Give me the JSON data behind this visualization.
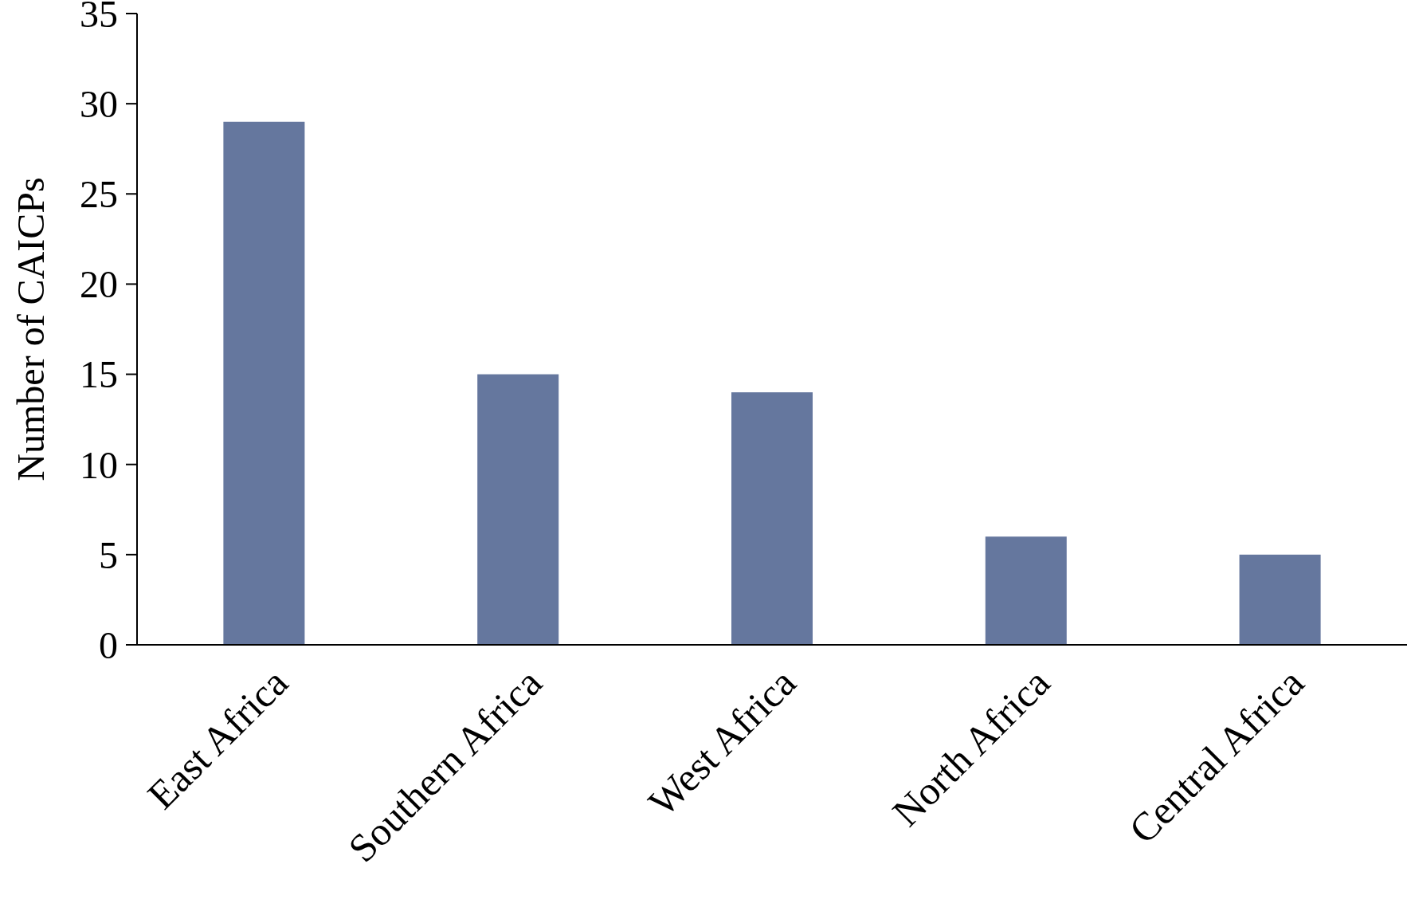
{
  "chart_data": {
    "type": "bar",
    "ylabel": "Number of CAICPs",
    "categories": [
      "East Africa",
      "Southern Africa",
      "West Africa",
      "North Africa",
      "Central Africa"
    ],
    "values": [
      29,
      15,
      14,
      6,
      5
    ],
    "color": "#65779e",
    "ylim": [
      0,
      35
    ],
    "yticks": [
      0,
      5,
      10,
      15,
      20,
      25,
      30,
      35
    ],
    "grid": false
  }
}
